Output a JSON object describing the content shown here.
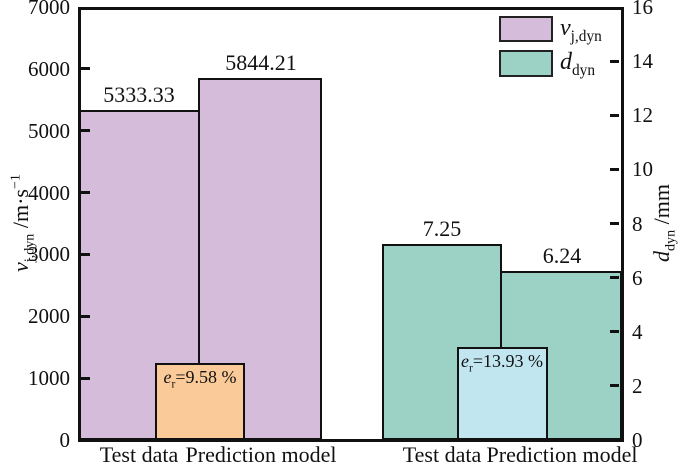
{
  "chart_data": {
    "type": "bar",
    "categories": [
      "Test data",
      "Prediction model"
    ],
    "series": [
      {
        "id": "vjdyn",
        "name_var": "v",
        "name_sub": "j,dyn",
        "axis": "left",
        "color": "#d6bcdb",
        "values": [
          5333.33,
          5844.21
        ],
        "value_labels": [
          "5333.33",
          "5844.21"
        ],
        "error": {
          "var": "e",
          "sub": "r",
          "rest": "=9.58 %",
          "color": "#fbca99",
          "box_top": 1240
        }
      },
      {
        "id": "ddyn",
        "name_var": "d",
        "name_sub": "dyn",
        "axis": "right",
        "color": "#9cd1c5",
        "values": [
          7.25,
          6.24
        ],
        "value_labels": [
          "7.25",
          "6.24"
        ],
        "error": {
          "var": "e",
          "sub": "r",
          "rest": "=13.93 %",
          "color": "#c2e6ef",
          "box_top": 3.43
        }
      }
    ],
    "left_axis": {
      "range": [
        0,
        7000
      ],
      "ticks": [
        "0",
        "1000",
        "2000",
        "3000",
        "4000",
        "5000",
        "6000",
        "7000"
      ],
      "label": {
        "var": "v",
        "sub": "j,dyn",
        "unit": " /m·s",
        "sup": "−1"
      }
    },
    "right_axis": {
      "range": [
        0,
        16
      ],
      "ticks": [
        "0",
        "2",
        "4",
        "6",
        "8",
        "10",
        "12",
        "14",
        "16"
      ],
      "label": {
        "var": "d",
        "sub": "dyn",
        "unit": " /mm",
        "sup": ""
      }
    },
    "legend": {
      "items": [
        {
          "var": "v",
          "sub": "j,dyn",
          "color": "#d6bcdb"
        },
        {
          "var": "d",
          "sub": "dyn",
          "color": "#9cd1c5"
        }
      ]
    },
    "ink_color": "#111111",
    "background": "#ffffff"
  }
}
